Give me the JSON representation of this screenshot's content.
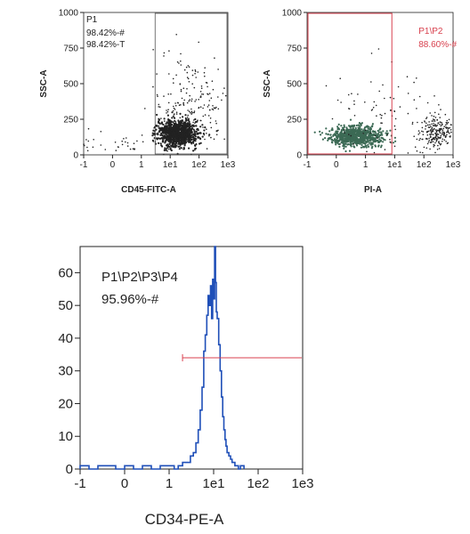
{
  "colors": {
    "scatter_dots": "#222222",
    "population_dots": "#3c6a55",
    "gate_red": "#d8424f",
    "histogram_blue": "#1f4fb8",
    "axis": "#222222"
  },
  "chart_data": [
    {
      "type": "scatter",
      "xlabel": "CD45-FITC-A",
      "ylabel": "SSC-A",
      "x_scale": "biexponential",
      "x_ticks": [
        "-1",
        "0",
        "1",
        "1e1",
        "1e2",
        "1e3"
      ],
      "ylim": [
        0,
        1000
      ],
      "y_ticks": [
        "0",
        "250",
        "500",
        "750",
        "1000"
      ],
      "gate": {
        "name": "P1",
        "x_min": 3,
        "x_max": 1000,
        "y_min": 0,
        "y_max": 1000,
        "stats": [
          "98.42%-#",
          "98.42%-T"
        ]
      },
      "clusters": [
        {
          "x_center": 18,
          "y_center": 150,
          "x_spread_decades": 0.35,
          "y_spread": 45,
          "count": 900,
          "dense": true
        },
        {
          "x_center": 40,
          "y_center": 300,
          "x_spread_decades": 0.6,
          "y_spread": 180,
          "count": 260,
          "dense": false
        },
        {
          "x_center": -0.5,
          "y_center": 70,
          "x_spread_decades": 1.0,
          "y_spread": 40,
          "count": 40,
          "dense": false
        }
      ]
    },
    {
      "type": "scatter",
      "xlabel": "PI-A",
      "ylabel": "SSC-A",
      "x_scale": "biexponential",
      "x_ticks": [
        "-1",
        "0",
        "1",
        "1e1",
        "1e2",
        "1e3"
      ],
      "ylim": [
        0,
        1000
      ],
      "y_ticks": [
        "0",
        "250",
        "500",
        "750",
        "1000"
      ],
      "gate": {
        "name": "P1\\P2",
        "x_min": -1,
        "x_max": 8,
        "y_min": 0,
        "y_max": 1000,
        "stats": [
          "88.60%-#"
        ]
      },
      "clusters": [
        {
          "x_center": 0.7,
          "y_center": 130,
          "x_spread_decades": 0.45,
          "y_spread": 35,
          "count": 750,
          "dense": true
        },
        {
          "x_center": 250,
          "y_center": 160,
          "x_spread_decades": 0.3,
          "y_spread": 55,
          "count": 220,
          "dense": false
        },
        {
          "x_center": 3,
          "y_center": 250,
          "x_spread_decades": 1.0,
          "y_spread": 180,
          "count": 90,
          "dense": false
        }
      ]
    },
    {
      "type": "histogram",
      "xlabel": "CD34-PE-A",
      "ylabel": "",
      "x_scale": "biexponential",
      "x_ticks": [
        "-1",
        "0",
        "1",
        "1e1",
        "1e2",
        "1e3"
      ],
      "ylim": [
        0,
        68
      ],
      "y_ticks": [
        "0",
        "10",
        "20",
        "30",
        "40",
        "50",
        "60"
      ],
      "gate": {
        "name": "P1\\P2\\P3\\P4",
        "x_min": 2,
        "x_max": 1000,
        "y_level": 34,
        "stats": [
          "95.96%-#"
        ]
      },
      "bins": [
        [
          -1.0,
          1
        ],
        [
          -0.8,
          0
        ],
        [
          -0.6,
          1
        ],
        [
          -0.4,
          1
        ],
        [
          -0.2,
          0
        ],
        [
          0.0,
          1
        ],
        [
          0.2,
          0
        ],
        [
          0.4,
          1
        ],
        [
          0.6,
          0
        ],
        [
          0.8,
          1
        ],
        [
          1.0,
          1
        ],
        [
          1.3,
          0
        ],
        [
          1.6,
          1
        ],
        [
          2.0,
          2
        ],
        [
          2.5,
          2
        ],
        [
          3.0,
          4
        ],
        [
          3.5,
          5
        ],
        [
          4.0,
          8
        ],
        [
          4.5,
          12
        ],
        [
          5.0,
          18
        ],
        [
          5.5,
          25
        ],
        [
          6.0,
          36
        ],
        [
          6.5,
          41
        ],
        [
          7.0,
          47
        ],
        [
          7.5,
          53
        ],
        [
          8.0,
          50
        ],
        [
          8.5,
          56
        ],
        [
          9.0,
          46
        ],
        [
          9.5,
          58
        ],
        [
          10.0,
          52
        ],
        [
          10.5,
          68
        ],
        [
          11.0,
          57
        ],
        [
          11.5,
          48
        ],
        [
          12.0,
          46
        ],
        [
          13.0,
          38
        ],
        [
          14.0,
          30
        ],
        [
          15.0,
          22
        ],
        [
          16.0,
          16
        ],
        [
          17.0,
          12
        ],
        [
          18.0,
          9
        ],
        [
          19.0,
          7
        ],
        [
          20.0,
          5
        ],
        [
          22.0,
          4
        ],
        [
          24.0,
          3
        ],
        [
          26.0,
          2
        ],
        [
          28.0,
          2
        ],
        [
          30.0,
          1
        ],
        [
          33.0,
          1
        ],
        [
          36.0,
          0
        ],
        [
          40.0,
          1
        ]
      ]
    }
  ]
}
